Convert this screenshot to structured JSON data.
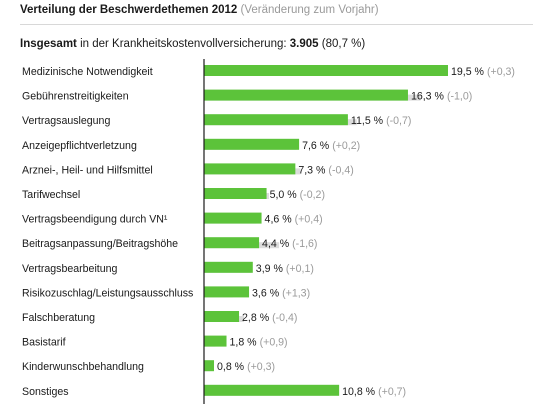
{
  "header": {
    "title": "Verteilung der Beschwerdethemen 2012",
    "subtitle": "(Veränderung zum Vorjahr)"
  },
  "summary": {
    "label": "Insgesamt",
    "text": "in der Krankheitskostenvollversicherung:",
    "value": "3.905",
    "share": "(80,7 %)"
  },
  "colors": {
    "current": "#5cc33a",
    "previous": "#dcdcdc",
    "axis": "#1a1a1a"
  },
  "chart_data": {
    "type": "bar",
    "orientation": "horizontal",
    "xlim": [
      0,
      20
    ],
    "categories": [
      "Medizinische Notwendigkeit",
      "Gebührenstreitigkeiten",
      "Vertragsauslegung",
      "Anzeigepflichtverletzung",
      "Arznei-, Heil- und Hilfsmittel",
      "Tarifwechsel",
      "Vertragsbeendigung durch VN¹",
      "Beitragsanpassung/Beitragshöhe",
      "Vertragsbearbeitung",
      "Risikozuschlag/Leistungsausschluss",
      "Falschberatung",
      "Basistarif",
      "Kinderwunschbehandlung",
      "Sonstiges"
    ],
    "series": [
      {
        "values": [
          19.5,
          16.3,
          11.5,
          7.6,
          7.3,
          5.0,
          4.6,
          4.4,
          3.9,
          3.6,
          2.8,
          1.8,
          0.8,
          10.8
        ],
        "labels": [
          "19,5 %",
          "16,3 %",
          "11,5 %",
          "7,6 %",
          "7,3 %",
          "5,0 %",
          "4,6 %",
          "4,4 %",
          "3,9 %",
          "3,6 %",
          "2,8 %",
          "1,8 %",
          "0,8 %",
          "10,8 %"
        ]
      },
      {
        "values": [
          19.2,
          17.3,
          12.2,
          7.4,
          7.7,
          5.2,
          4.2,
          6.0,
          3.8,
          2.3,
          3.2,
          0.9,
          0.5,
          10.1
        ]
      }
    ],
    "changes": [
      "(+0,3)",
      "(-1,0)",
      "(-0,7)",
      "(+0,2)",
      "(-0,4)",
      "(-0,2)",
      "(+0,4)",
      "(-1,6)",
      "(+0,1)",
      "(+1,3)",
      "(-0,4)",
      "(+0,9)",
      "(+0,3)",
      "(+0,7)"
    ]
  }
}
